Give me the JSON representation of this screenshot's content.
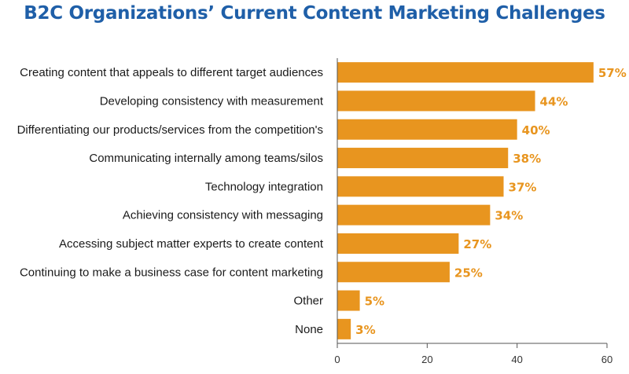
{
  "chart_data": {
    "type": "bar",
    "orientation": "horizontal",
    "title": "B2C Organizations’ Current Content Marketing Challenges",
    "categories": [
      "Creating content that appeals to different target audiences",
      "Developing consistency with measurement",
      "Differentiating our products/services from the competition's",
      "Communicating internally among teams/silos",
      "Technology integration",
      "Achieving consistency with messaging",
      "Accessing subject matter experts to create content",
      "Continuing to make a business case for content marketing",
      "Other",
      "None"
    ],
    "values": [
      57,
      44,
      40,
      38,
      37,
      34,
      27,
      25,
      5,
      3
    ],
    "value_labels": [
      "57%",
      "44%",
      "40%",
      "38%",
      "37%",
      "34%",
      "27%",
      "25%",
      "5%",
      "3%"
    ],
    "xlim": [
      0,
      60
    ],
    "xticks": [
      0,
      20,
      40,
      60
    ],
    "xtick_labels": [
      "0",
      "20",
      "40",
      "60"
    ],
    "xlabel": "",
    "ylabel": "",
    "grid": false,
    "legend": "none",
    "colors": {
      "bar": "#E8951F",
      "value_label": "#E8951F",
      "title": "#1F5FA8",
      "axis": "#555555"
    }
  }
}
